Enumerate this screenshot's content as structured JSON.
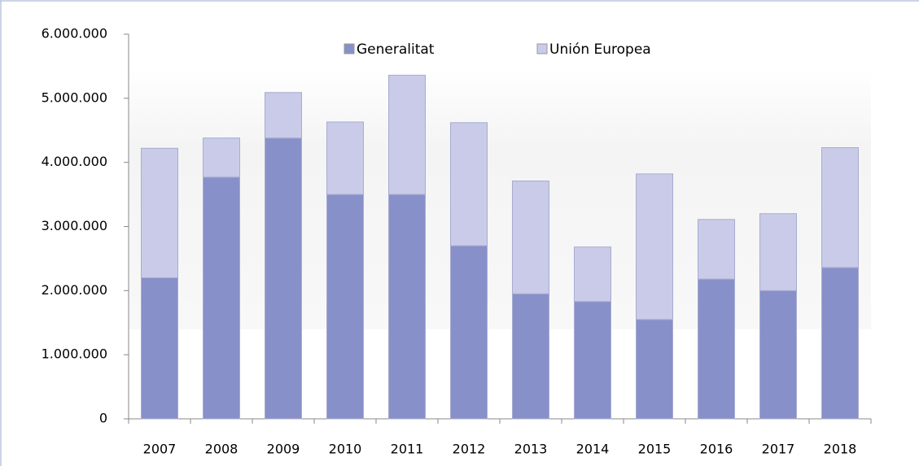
{
  "chart_data": {
    "type": "stacked_bar",
    "categories": [
      "2007",
      "2008",
      "2009",
      "2010",
      "2011",
      "2012",
      "2013",
      "2014",
      "2015",
      "2016",
      "2017",
      "2018"
    ],
    "series": [
      {
        "name": "Generalitat",
        "color": "#8790c8",
        "values": [
          2200000,
          3770000,
          4380000,
          3500000,
          3500000,
          2700000,
          1950000,
          1830000,
          1550000,
          2180000,
          2000000,
          2360000
        ]
      },
      {
        "name": "Unión Europea",
        "color": "#c9cbe8",
        "values": [
          2020000,
          610000,
          710000,
          1130000,
          1860000,
          1920000,
          1760000,
          850000,
          2270000,
          930000,
          1200000,
          1870000
        ]
      }
    ],
    "ylim": [
      0,
      6000000
    ],
    "yticks": [
      0,
      {
        "value": 1000000,
        "label": "1.000.000"
      },
      {
        "value": 2000000,
        "label": "2.000.000"
      },
      {
        "value": 3000000,
        "label": "3.000.000"
      },
      {
        "value": 4000000,
        "label": "4.000.000"
      },
      {
        "value": 5000000,
        "label": "5.000.000"
      },
      {
        "value": 6000000,
        "label": "6.000.000"
      }
    ],
    "legend": "top"
  }
}
